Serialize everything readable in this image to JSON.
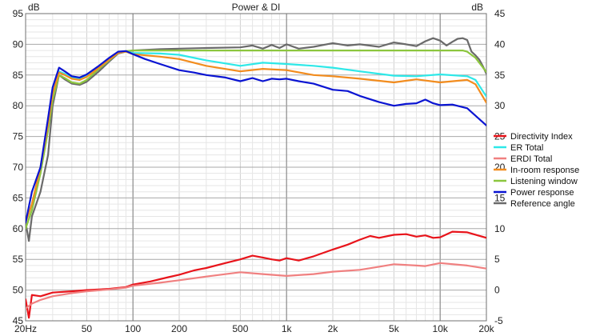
{
  "chart_data": {
    "type": "line",
    "title": "Power & DI",
    "left_unit": "dB",
    "right_unit": "dB",
    "x_scale": "log",
    "xlim": [
      20,
      20000
    ],
    "ylim_left": [
      45,
      95
    ],
    "ylim_right": [
      -5,
      45
    ],
    "x_ticks": [
      {
        "value": 20,
        "label": "20Hz"
      },
      {
        "value": 50,
        "label": "50"
      },
      {
        "value": 100,
        "label": "100"
      },
      {
        "value": 200,
        "label": "200"
      },
      {
        "value": 500,
        "label": "500"
      },
      {
        "value": 1000,
        "label": "1k"
      },
      {
        "value": 2000,
        "label": "2k"
      },
      {
        "value": 5000,
        "label": "5k"
      },
      {
        "value": 10000,
        "label": "10k"
      },
      {
        "value": 20000,
        "label": "20k"
      }
    ],
    "y_ticks_left": [
      {
        "value": 45,
        "label": "45"
      },
      {
        "value": 50,
        "label": "50"
      },
      {
        "value": 55,
        "label": "55"
      },
      {
        "value": 60,
        "label": "60"
      },
      {
        "value": 65,
        "label": "65"
      },
      {
        "value": 70,
        "label": "70"
      },
      {
        "value": 75,
        "label": "75"
      },
      {
        "value": 80,
        "label": "80"
      },
      {
        "value": 85,
        "label": "85"
      },
      {
        "value": 90,
        "label": "90"
      },
      {
        "value": 95,
        "label": "95"
      }
    ],
    "y_ticks_right": [
      {
        "value": -5,
        "label": "-5"
      },
      {
        "value": 0,
        "label": "0"
      },
      {
        "value": 5,
        "label": "5"
      },
      {
        "value": 10,
        "label": "10"
      },
      {
        "value": 15,
        "label": "15"
      },
      {
        "value": 20,
        "label": "20"
      },
      {
        "value": 25,
        "label": "25"
      },
      {
        "value": 30,
        "label": "30"
      },
      {
        "value": 35,
        "label": "35"
      },
      {
        "value": 40,
        "label": "40"
      },
      {
        "value": 45,
        "label": "45"
      }
    ],
    "grid": true,
    "legend": "right",
    "series": [
      {
        "name": "Directivity Index",
        "axis": "right",
        "color": "#e8141b",
        "x": [
          20,
          21,
          22,
          25,
          30,
          40,
          50,
          70,
          90,
          100,
          130,
          170,
          200,
          250,
          300,
          400,
          500,
          600,
          700,
          800,
          900,
          1000,
          1200,
          1500,
          2000,
          2500,
          3000,
          3500,
          4000,
          5000,
          6000,
          7000,
          8000,
          9000,
          10000,
          12000,
          15000,
          20000
        ],
        "y": [
          -1.5,
          -4.5,
          -0.8,
          -1,
          -0.4,
          -0.2,
          0,
          0.2,
          0.5,
          0.9,
          1.4,
          2.1,
          2.5,
          3.2,
          3.6,
          4.4,
          5.0,
          5.6,
          5.3,
          5.0,
          4.8,
          5.2,
          4.8,
          5.5,
          6.6,
          7.4,
          8.2,
          8.8,
          8.5,
          9.0,
          9.1,
          8.7,
          8.9,
          8.5,
          8.6,
          9.5,
          9.4,
          8.5
        ]
      },
      {
        "name": "ER Total",
        "axis": "left",
        "color": "#2ee8e8",
        "x": [
          20,
          22,
          25,
          28,
          30,
          33,
          36,
          40,
          45,
          50,
          60,
          70,
          80,
          90,
          100,
          150,
          200,
          300,
          500,
          700,
          1000,
          1500,
          2000,
          3000,
          5000,
          7000,
          10000,
          15000,
          17000,
          20000
        ],
        "y": [
          61,
          64,
          70,
          77,
          82,
          85.6,
          85.2,
          84.6,
          84.4,
          84.8,
          86.2,
          87.5,
          88.6,
          88.8,
          88.6,
          88.5,
          88.3,
          87.4,
          86.5,
          87,
          86.8,
          86.5,
          86.2,
          85.6,
          84.9,
          84.8,
          85.1,
          84.8,
          84.2,
          81.5
        ]
      },
      {
        "name": "ERDI Total",
        "axis": "right",
        "color": "#f08080",
        "x": [
          20,
          22,
          25,
          30,
          40,
          50,
          70,
          90,
          100,
          150,
          200,
          300,
          500,
          700,
          1000,
          1500,
          2000,
          3000,
          4000,
          5000,
          7000,
          8000,
          10000,
          15000,
          20000
        ],
        "y": [
          -3,
          -2.2,
          -1.6,
          -1,
          -0.5,
          -0.2,
          0.1,
          0.4,
          0.7,
          1.2,
          1.6,
          2.2,
          2.9,
          2.6,
          2.3,
          2.6,
          3.0,
          3.3,
          3.8,
          4.2,
          4.0,
          3.9,
          4.4,
          4.0,
          3.5
        ]
      },
      {
        "name": "In-room response",
        "axis": "left",
        "color": "#f28c1e",
        "x": [
          20,
          22,
          25,
          28,
          30,
          33,
          36,
          40,
          45,
          50,
          60,
          70,
          80,
          90,
          100,
          150,
          200,
          300,
          500,
          700,
          1000,
          1500,
          2000,
          3000,
          5000,
          7000,
          10000,
          15000,
          17000,
          20000
        ],
        "y": [
          61,
          64,
          70,
          77,
          82,
          85.4,
          85,
          84.4,
          84.2,
          84.7,
          86.2,
          87.5,
          88.6,
          88.8,
          88.4,
          88.0,
          87.6,
          86.5,
          85.6,
          86.0,
          85.8,
          85.0,
          84.8,
          84.4,
          83.8,
          84.3,
          83.8,
          84.2,
          83.5,
          80.5
        ]
      },
      {
        "name": "Listening window",
        "axis": "left",
        "color": "#8cc63e",
        "x": [
          20,
          22,
          25,
          28,
          30,
          33,
          36,
          40,
          45,
          50,
          60,
          70,
          80,
          90,
          100,
          150,
          200,
          300,
          500,
          700,
          1000,
          1500,
          2000,
          3000,
          5000,
          7000,
          10000,
          14000,
          15000,
          17000,
          20000
        ],
        "y": [
          60,
          63,
          69,
          76,
          81,
          85,
          84.5,
          83.8,
          83.6,
          84.2,
          86.0,
          87.4,
          88.6,
          88.9,
          89,
          89,
          89,
          89,
          89,
          89,
          89,
          89,
          89,
          89,
          89,
          89,
          89,
          89,
          88.8,
          87.8,
          85.5
        ]
      },
      {
        "name": "Power response",
        "axis": "left",
        "color": "#0a14d2",
        "x": [
          20,
          22,
          25,
          28,
          30,
          33,
          36,
          40,
          45,
          50,
          60,
          70,
          80,
          90,
          100,
          120,
          150,
          200,
          250,
          300,
          400,
          500,
          600,
          700,
          800,
          900,
          1000,
          1200,
          1500,
          2000,
          2500,
          3000,
          4000,
          5000,
          6000,
          7000,
          8000,
          9000,
          10000,
          12000,
          15000,
          20000
        ],
        "y": [
          61,
          66,
          70,
          78,
          83,
          86.2,
          85.6,
          84.8,
          84.6,
          85.1,
          86.5,
          87.8,
          88.8,
          88.9,
          88.4,
          87.6,
          86.8,
          85.8,
          85.4,
          85.0,
          84.6,
          84.0,
          84.5,
          84.0,
          84.4,
          84.3,
          84.4,
          84.0,
          83.6,
          82.6,
          82.4,
          81.6,
          80.6,
          80.0,
          80.3,
          80.4,
          81.0,
          80.4,
          80.1,
          80.2,
          79.6,
          76.8
        ]
      },
      {
        "name": "Reference angle",
        "axis": "left",
        "color": "#6a6a6a",
        "x": [
          20,
          21,
          22,
          25,
          28,
          30,
          33,
          36,
          40,
          45,
          50,
          60,
          70,
          80,
          90,
          100,
          150,
          200,
          300,
          500,
          600,
          700,
          800,
          900,
          1000,
          1200,
          1500,
          2000,
          2500,
          3000,
          4000,
          5000,
          6000,
          7000,
          8000,
          9000,
          10000,
          11000,
          12000,
          13000,
          14000,
          15000,
          16000,
          17000,
          18000,
          19000,
          20000
        ],
        "y": [
          61,
          58,
          62,
          66,
          72,
          80,
          85,
          84.3,
          83.6,
          83.4,
          83.9,
          85.6,
          87.2,
          88.5,
          88.8,
          89,
          89.2,
          89.3,
          89.4,
          89.5,
          89.8,
          89.3,
          89.9,
          89.4,
          90.0,
          89.3,
          89.6,
          90.2,
          89.8,
          90.0,
          89.6,
          90.3,
          90.0,
          89.7,
          90.5,
          91.0,
          90.6,
          89.8,
          90.4,
          90.9,
          91.0,
          90.7,
          88.8,
          88.2,
          87.5,
          86.4,
          85.2
        ]
      }
    ]
  }
}
